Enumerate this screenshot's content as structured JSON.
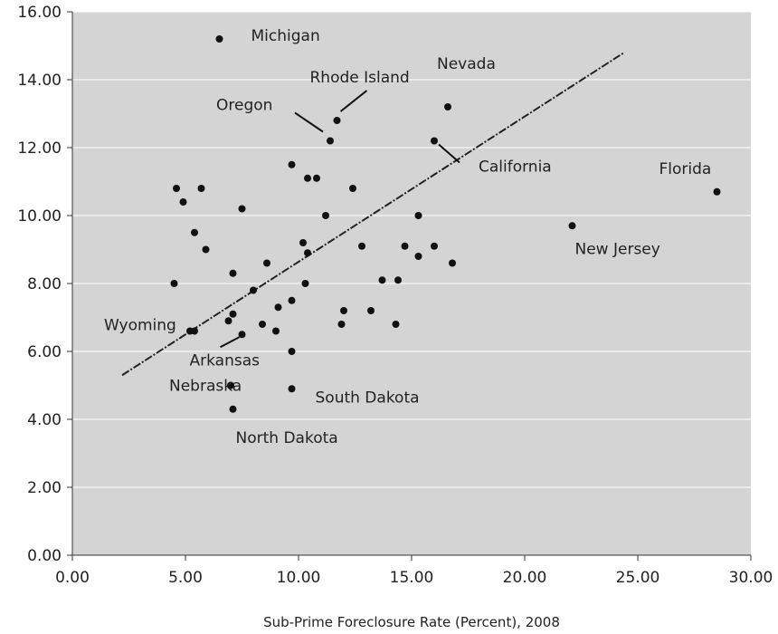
{
  "chart_data": {
    "type": "scatter",
    "title": "",
    "xlabel": "Sub-Prime Foreclosure Rate (Percent), 2008",
    "ylabel": "",
    "xlim": [
      0,
      30
    ],
    "ylim": [
      0,
      16
    ],
    "x_ticks": [
      "0.00",
      "5.00",
      "10.00",
      "15.00",
      "20.00",
      "25.00",
      "30.00"
    ],
    "y_ticks": [
      "0.00",
      "2.00",
      "4.00",
      "6.00",
      "8.00",
      "10.00",
      "12.00",
      "14.00",
      "16.00"
    ],
    "grid": "horizontal",
    "colors": {
      "plot_background": "#d4d4d4",
      "point": "#111111",
      "trendline": "#222222",
      "gridline": "#ffffff"
    },
    "trendline": {
      "style": "dashed",
      "x": [
        2.2,
        24.4
      ],
      "y": [
        5.3,
        14.8
      ]
    },
    "points": [
      {
        "x": 6.5,
        "y": 15.2,
        "label": "Michigan"
      },
      {
        "x": 11.7,
        "y": 12.8,
        "label": "Rhode Island"
      },
      {
        "x": 16.6,
        "y": 13.2,
        "label": "Nevada"
      },
      {
        "x": 11.4,
        "y": 12.2,
        "label": "Oregon"
      },
      {
        "x": 16.0,
        "y": 12.2,
        "label": "California"
      },
      {
        "x": 28.5,
        "y": 10.7,
        "label": "Florida"
      },
      {
        "x": 22.1,
        "y": 9.7,
        "label": "New Jersey"
      },
      {
        "x": 5.2,
        "y": 6.6,
        "label": "Wyoming"
      },
      {
        "x": 7.5,
        "y": 6.5,
        "label": "Arkansas"
      },
      {
        "x": 7.0,
        "y": 5.0,
        "label": "Nebraska"
      },
      {
        "x": 9.7,
        "y": 4.9,
        "label": "South Dakota"
      },
      {
        "x": 7.1,
        "y": 4.3,
        "label": "North Dakota"
      },
      {
        "x": 9.7,
        "y": 11.5
      },
      {
        "x": 10.4,
        "y": 11.1
      },
      {
        "x": 10.8,
        "y": 11.1
      },
      {
        "x": 12.4,
        "y": 10.8
      },
      {
        "x": 11.2,
        "y": 10.0
      },
      {
        "x": 15.3,
        "y": 10.0
      },
      {
        "x": 4.6,
        "y": 10.8
      },
      {
        "x": 5.7,
        "y": 10.8
      },
      {
        "x": 4.9,
        "y": 10.4
      },
      {
        "x": 7.5,
        "y": 10.2
      },
      {
        "x": 5.4,
        "y": 9.5
      },
      {
        "x": 5.9,
        "y": 9.0
      },
      {
        "x": 10.2,
        "y": 9.2
      },
      {
        "x": 10.4,
        "y": 8.9
      },
      {
        "x": 12.8,
        "y": 9.1
      },
      {
        "x": 14.7,
        "y": 9.1
      },
      {
        "x": 16.0,
        "y": 9.1
      },
      {
        "x": 15.3,
        "y": 8.8
      },
      {
        "x": 16.8,
        "y": 8.6
      },
      {
        "x": 8.6,
        "y": 8.6
      },
      {
        "x": 7.1,
        "y": 8.3
      },
      {
        "x": 8.0,
        "y": 7.8
      },
      {
        "x": 13.7,
        "y": 8.1
      },
      {
        "x": 14.4,
        "y": 8.1
      },
      {
        "x": 10.3,
        "y": 8.0
      },
      {
        "x": 4.5,
        "y": 8.0
      },
      {
        "x": 9.7,
        "y": 7.5
      },
      {
        "x": 9.1,
        "y": 7.3
      },
      {
        "x": 12.0,
        "y": 7.2
      },
      {
        "x": 13.2,
        "y": 7.2
      },
      {
        "x": 7.1,
        "y": 7.1
      },
      {
        "x": 6.9,
        "y": 6.9
      },
      {
        "x": 8.4,
        "y": 6.8
      },
      {
        "x": 11.9,
        "y": 6.8
      },
      {
        "x": 14.3,
        "y": 6.8
      },
      {
        "x": 9.0,
        "y": 6.6
      },
      {
        "x": 5.4,
        "y": 6.6
      },
      {
        "x": 9.7,
        "y": 6.0
      }
    ]
  }
}
